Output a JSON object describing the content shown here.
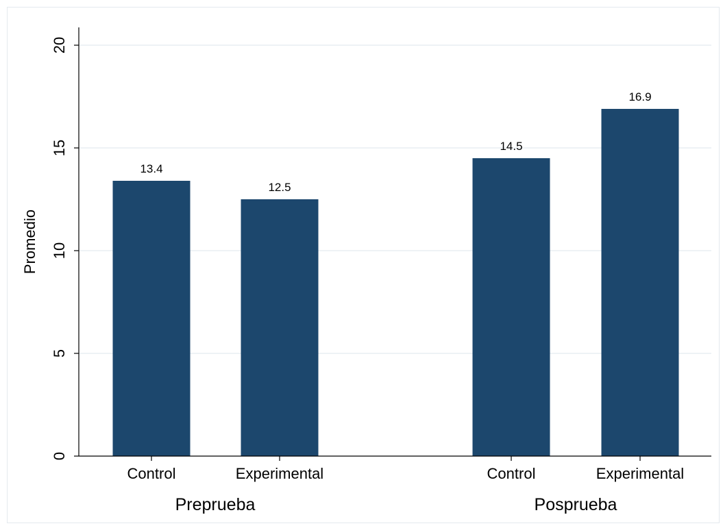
{
  "chart_data": {
    "type": "bar",
    "ylabel": "Promedio",
    "ylim": [
      0,
      20
    ],
    "yticks": [
      "0",
      "5",
      "10",
      "15",
      "20"
    ],
    "grid": true,
    "groups": [
      {
        "label": "Preprueba",
        "bars": [
          {
            "category": "Control",
            "value": 13.4,
            "label": "13.4"
          },
          {
            "category": "Experimental",
            "value": 12.5,
            "label": "12.5"
          }
        ]
      },
      {
        "label": "Posprueba",
        "bars": [
          {
            "category": "Control",
            "value": 14.5,
            "label": "14.5"
          },
          {
            "category": "Experimental",
            "value": 16.9,
            "label": "16.9"
          }
        ]
      }
    ],
    "colors": {
      "bar": "#1c476d",
      "grid": "#e8eef2",
      "axis": "#000000"
    }
  }
}
